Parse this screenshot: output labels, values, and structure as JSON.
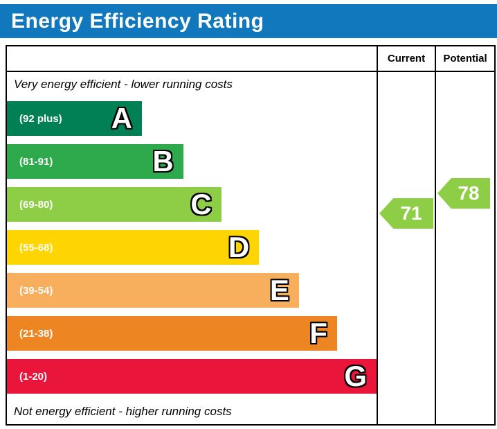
{
  "header": {
    "title": "Energy Efficiency Rating",
    "bg": "#1278be"
  },
  "table": {
    "col_current": "Current",
    "col_potential": "Potential",
    "top_note": "Very energy efficient - lower running costs",
    "bottom_note": "Not energy efficient - higher running costs"
  },
  "chart_data": {
    "type": "bar",
    "title": "Energy Efficiency Rating",
    "bands": [
      {
        "letter": "A",
        "range_label": "(92 plus)",
        "range": [
          92,
          100
        ],
        "color": "#008054",
        "width_pct": 36.5
      },
      {
        "letter": "B",
        "range_label": "(81-91)",
        "range": [
          81,
          91
        ],
        "color": "#2ea94c",
        "width_pct": 47.7
      },
      {
        "letter": "C",
        "range_label": "(69-80)",
        "range": [
          69,
          80
        ],
        "color": "#8dce46",
        "width_pct": 58.0
      },
      {
        "letter": "D",
        "range_label": "(55-68)",
        "range": [
          55,
          68
        ],
        "color": "#ffd500",
        "width_pct": 68.2
      },
      {
        "letter": "E",
        "range_label": "(39-54)",
        "range": [
          39,
          54
        ],
        "color": "#f7ae5d",
        "width_pct": 79.0
      },
      {
        "letter": "F",
        "range_label": "(21-38)",
        "range": [
          21,
          38
        ],
        "color": "#ee8523",
        "width_pct": 89.3
      },
      {
        "letter": "G",
        "range_label": "(1-20)",
        "range": [
          1,
          20
        ],
        "color": "#e9153b",
        "width_pct": 100
      }
    ],
    "current": {
      "label": "Current",
      "value": "71",
      "color": "#8dce46"
    },
    "potential": {
      "label": "Potential",
      "value": "78",
      "color": "#8dce46"
    }
  }
}
